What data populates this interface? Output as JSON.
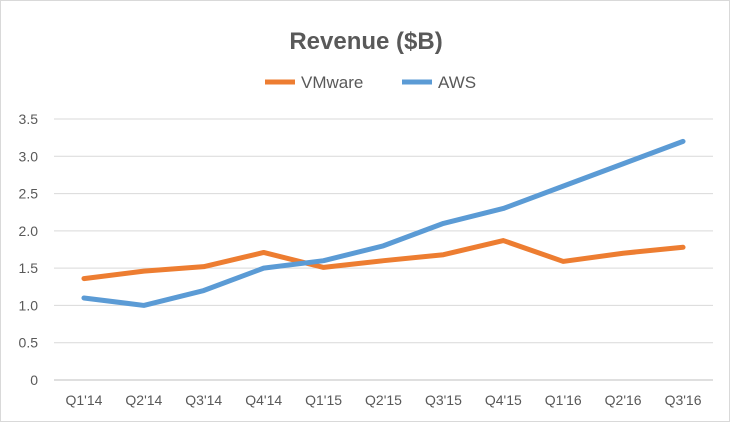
{
  "chart_data": {
    "type": "line",
    "title": "Revenue ($B)",
    "categories": [
      "Q1'14",
      "Q2'14",
      "Q3'14",
      "Q4'14",
      "Q1'15",
      "Q2'15",
      "Q3'15",
      "Q4'15",
      "Q1'16",
      "Q2'16",
      "Q3'16"
    ],
    "series": [
      {
        "name": "VMware",
        "color": "#ed7d31",
        "values": [
          1.36,
          1.46,
          1.52,
          1.71,
          1.51,
          1.6,
          1.68,
          1.87,
          1.59,
          1.7,
          1.78
        ]
      },
      {
        "name": "AWS",
        "color": "#5b9bd5",
        "values": [
          1.1,
          1.0,
          1.2,
          1.5,
          1.6,
          1.8,
          2.1,
          2.3,
          2.6,
          2.9,
          3.2
        ]
      }
    ],
    "yticks": [
      "0",
      "0.5",
      "1.0",
      "1.5",
      "2.0",
      "2.5",
      "3.0",
      "3.5"
    ],
    "ylim": [
      0,
      3.5
    ],
    "grid": true,
    "legend": "top"
  }
}
